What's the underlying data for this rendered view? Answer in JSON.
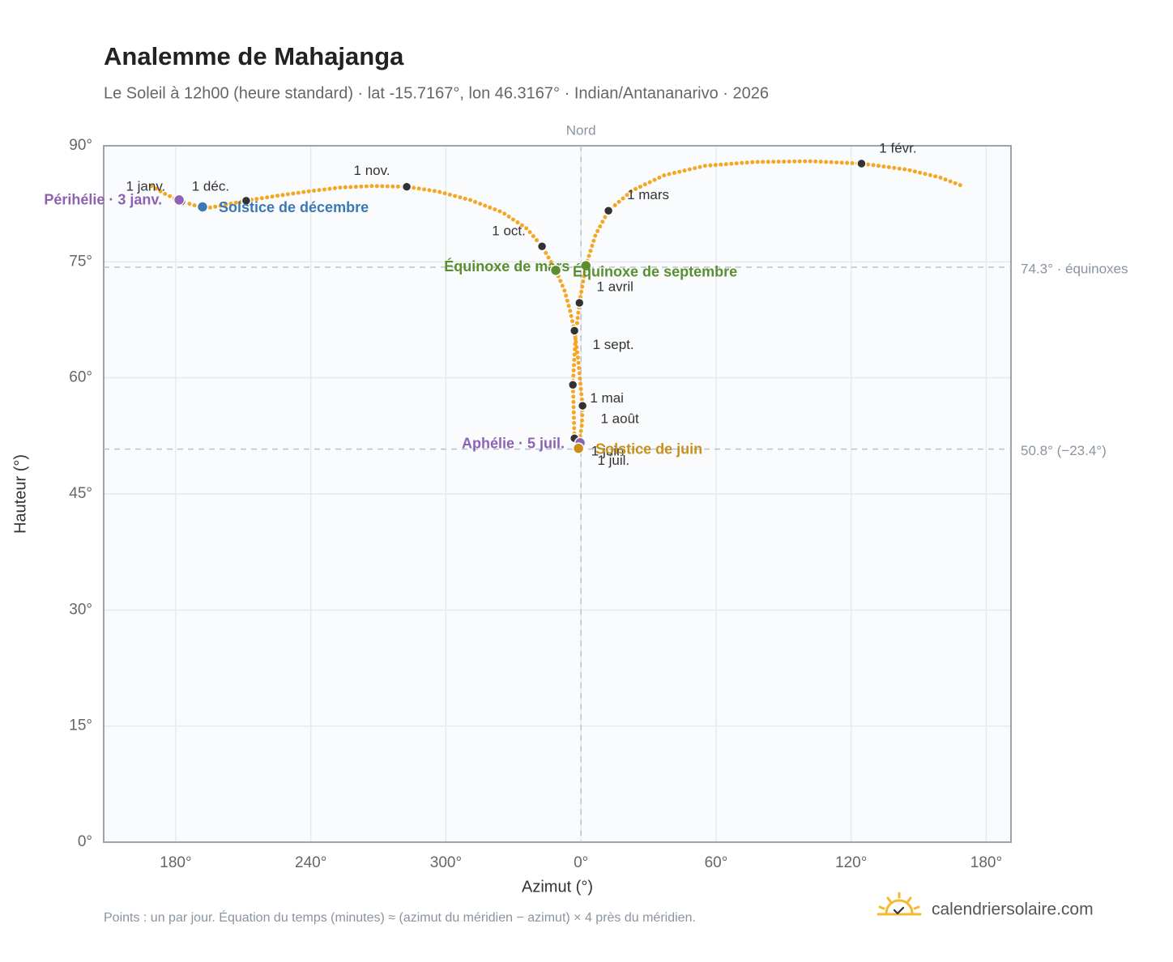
{
  "chart_data": {
    "type": "analemma",
    "title": "Analemme de Mahajanga",
    "subtitle": "Le Soleil à 12h00 (heure standard) · lat -15.7167°, lon 46.3167° · Indian/Antananarivo · 2026",
    "x_label": "Azimut (°)",
    "y_label": "Hauteur (°)",
    "note": "Points : un par jour. Équation du temps (minutes) ≈ (azimut du méridien − azimut) × 4 près du méridien.",
    "brand": "calendriersolaire.com",
    "xlim": [
      148,
      551
    ],
    "ylim": [
      0,
      90
    ],
    "xticks": [
      {
        "value": 180,
        "label": "180°"
      },
      {
        "value": 240,
        "label": "240°"
      },
      {
        "value": 300,
        "label": "300°"
      },
      {
        "value": 360,
        "label": "0°"
      },
      {
        "value": 420,
        "label": "60°"
      },
      {
        "value": 480,
        "label": "120°"
      },
      {
        "value": 540,
        "label": "180°"
      }
    ],
    "yticks": [
      {
        "value": 0,
        "label": "0°"
      },
      {
        "value": 15,
        "label": "15°"
      },
      {
        "value": 30,
        "label": "30°"
      },
      {
        "value": 45,
        "label": "45°"
      },
      {
        "value": 60,
        "label": "60°"
      },
      {
        "value": 75,
        "label": "75°"
      },
      {
        "value": 90,
        "label": "90°"
      }
    ],
    "grid": true,
    "color": "#f5a623",
    "path": {
      "x": [
        169.2,
        175.7,
        181.8,
        188.3,
        195.5,
        202.7,
        211.3,
        224.3,
        238.7,
        253.1,
        267.5,
        282.6,
        296.3,
        310.7,
        325.1,
        335.9,
        342.7,
        348.8,
        352.8,
        355.3,
        357.1,
        358.6,
        359.6,
        360.7,
        360.4,
        359.3,
        358.2,
        357.1,
        356.8,
        356.4,
        357.5,
        359.3,
        362.2,
        366.5,
        372.2,
        382.7,
        397.1,
        415.1,
        436.7,
        461.9,
        484.6,
        505.1,
        519.5,
        529.5
      ],
      "y": [
        84.8,
        83.7,
        82.9,
        82.3,
        82.0,
        82.4,
        82.9,
        83.5,
        84.1,
        84.6,
        84.8,
        84.7,
        84.1,
        83.0,
        81.4,
        79.3,
        77.0,
        73.9,
        71.2,
        68.5,
        66.1,
        62.8,
        59.6,
        56.4,
        53.9,
        51.8,
        51.0,
        52.2,
        55.5,
        59.1,
        64.9,
        69.7,
        74.5,
        78.5,
        81.6,
        84.2,
        86.2,
        87.4,
        87.9,
        88.0,
        87.7,
        86.9,
        85.9,
        84.8
      ]
    },
    "markers": [
      {
        "label": "1 janv.",
        "x": 182.5,
        "y": 82.8
      },
      {
        "label": "1 févr.",
        "x": 484.6,
        "y": 87.7
      },
      {
        "label": "1 mars",
        "x": 372.2,
        "y": 81.6
      },
      {
        "label": "1 avril",
        "x": 359.3,
        "y": 69.7
      },
      {
        "label": "1 mai",
        "x": 356.4,
        "y": 59.1
      },
      {
        "label": "1 juin",
        "x": 357.1,
        "y": 52.2
      },
      {
        "label": "1 juil.",
        "x": 358.6,
        "y": 51.1
      },
      {
        "label": "1 août",
        "x": 360.7,
        "y": 56.4
      },
      {
        "label": "1 sept.",
        "x": 357.1,
        "y": 66.1
      },
      {
        "label": "1 oct.",
        "x": 342.7,
        "y": 77.0
      },
      {
        "label": "1 nov.",
        "x": 282.6,
        "y": 84.7
      },
      {
        "label": "1 déc.",
        "x": 211.3,
        "y": 82.9
      }
    ],
    "events": [
      {
        "label": "Périhélie · 3 janv.",
        "x": 181.5,
        "y": 83.0,
        "color": "#8e62b3"
      },
      {
        "label": "Solstice de décembre",
        "x": 191.9,
        "y": 82.1,
        "color": "#3a78b5"
      },
      {
        "label": "Équinoxe de mars",
        "x": 362.2,
        "y": 74.5,
        "color": "#5a8f2e"
      },
      {
        "label": "Équinoxe de septembre",
        "x": 348.8,
        "y": 73.9,
        "color": "#5a8f2e"
      },
      {
        "label": "Aphélie · 5 juil.",
        "x": 359.6,
        "y": 51.6,
        "color": "#8e62b3"
      },
      {
        "label": "Solstice de juin",
        "x": 358.9,
        "y": 50.9,
        "color": "#c8901a"
      }
    ],
    "reference_lines": [
      {
        "axis": "y",
        "value": 74.3,
        "label": "74.3° · équinoxes"
      },
      {
        "axis": "y",
        "value": 50.8,
        "label": "50.8° (−23.4°)"
      },
      {
        "axis": "x",
        "value": 360,
        "label": "Nord"
      }
    ]
  }
}
